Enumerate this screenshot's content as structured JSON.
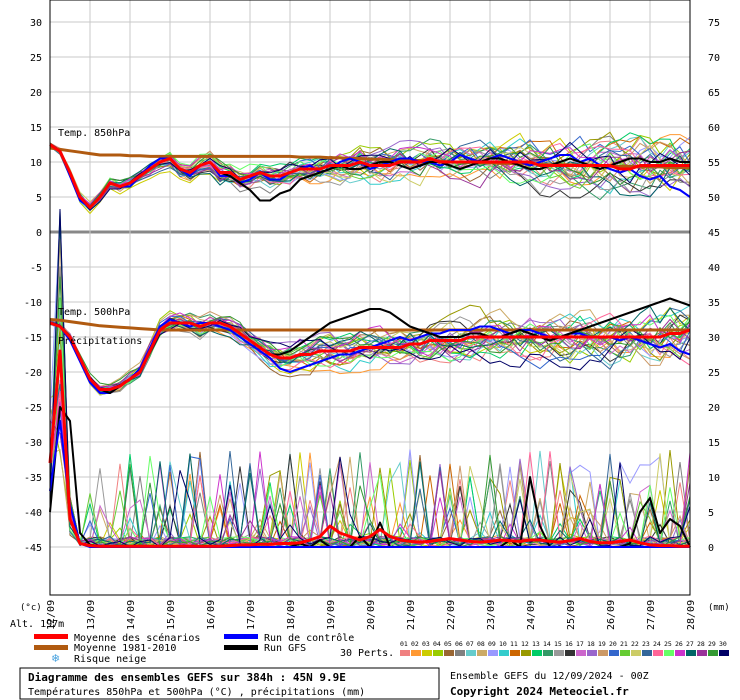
{
  "chart_data": {
    "type": "line",
    "title": "Diagramme des ensembles GEFS sur 384h : 45N 9.9E",
    "subtitle": "Températures 850hPa et 500hPa (°C) , précipitations (mm)",
    "run_info": "Ensemble GEFS du 12/09/2024 - 00Z",
    "copyright": "Copyright 2024 Meteociel.fr",
    "left_unit": "(°c)",
    "right_unit": "(mm)",
    "altitude": "Alt. 197m",
    "left_ticks": [
      30,
      25,
      20,
      15,
      10,
      5,
      0,
      -5,
      -10,
      -15,
      -20,
      -25,
      -30,
      -35,
      -40,
      -45
    ],
    "right_ticks": [
      75,
      70,
      65,
      60,
      55,
      50,
      45,
      40,
      35,
      30,
      25,
      20,
      15,
      10,
      5,
      0
    ],
    "ylim_temp": [
      -45,
      30
    ],
    "ylim_precip": [
      0,
      75
    ],
    "date_labels": [
      "12/09",
      "13/09",
      "14/09",
      "15/09",
      "16/09",
      "17/09",
      "18/09",
      "19/09",
      "20/09",
      "21/09",
      "22/09",
      "23/09",
      "24/09",
      "25/09",
      "26/09",
      "27/09",
      "28/09"
    ],
    "annotations": {
      "t850": "Temp. 850hPa",
      "t500": "Temp. 500hPa",
      "precip": "Précipitations"
    },
    "legend": {
      "mean": {
        "label": "Moyenne des scénarios",
        "color": "#ff0000"
      },
      "clim": {
        "label": "Moyenne 1981-2010",
        "color": "#b05a10"
      },
      "snow": {
        "label": "Risque neige",
        "color": "#4aa3df"
      },
      "control": {
        "label": "Run de contrôle",
        "color": "#0000ff"
      },
      "gfs": {
        "label": "Run GFS",
        "color": "#000000"
      },
      "perts_label": "30 Perts.",
      "perts_numbers": [
        "01",
        "02",
        "03",
        "04",
        "05",
        "06",
        "07",
        "08",
        "09",
        "10",
        "11",
        "12",
        "13",
        "14",
        "15",
        "16",
        "17",
        "18",
        "19",
        "20",
        "21",
        "22",
        "23",
        "24",
        "25",
        "26",
        "27",
        "28",
        "29",
        "30"
      ],
      "perts_colors": [
        "#f08080",
        "#ff9933",
        "#cccc00",
        "#99cc00",
        "#996633",
        "#808080",
        "#66cccc",
        "#ccaa66",
        "#9999ff",
        "#33cccc",
        "#cc6600",
        "#999900",
        "#00cc66",
        "#339966",
        "#999999",
        "#333333",
        "#cc66cc",
        "#9966cc",
        "#cc9966",
        "#3366cc",
        "#66cc33",
        "#cccc66",
        "#336699",
        "#ff6699",
        "#66ff66",
        "#cc33cc",
        "#006666",
        "#993399",
        "#339933",
        "#000066"
      ]
    },
    "series": [
      {
        "name": "Moyenne des scénarios",
        "var": "t850",
        "values": [
          12.5,
          11.5,
          8.5,
          5.0,
          3.5,
          5.0,
          7.0,
          6.5,
          7.0,
          8.0,
          9.0,
          10.0,
          10.5,
          9.0,
          8.5,
          9.5,
          10.0,
          8.5,
          8.5,
          7.5,
          8.0,
          8.5,
          8.0,
          8.0,
          8.5,
          9.0,
          9.0,
          9.0,
          9.5,
          9.5,
          9.5,
          10.0,
          9.5,
          9.5,
          9.5,
          10.0,
          10.0,
          10.0,
          10.5,
          10.0,
          10.0,
          10.0,
          10.0,
          10.0,
          10.0,
          10.0,
          10.0,
          10.0,
          10.0,
          9.5,
          9.5,
          9.5,
          9.5,
          9.5,
          9.5,
          9.5,
          9.5,
          9.0,
          9.0,
          9.5,
          9.5,
          9.5,
          9.5,
          9.5,
          9.5
        ]
      },
      {
        "name": "Moyenne des scénarios",
        "var": "t500",
        "values": [
          -13,
          -13.5,
          -15,
          -18,
          -21,
          -22.5,
          -22.5,
          -22,
          -21,
          -20,
          -17,
          -14,
          -13,
          -13,
          -13,
          -13.5,
          -13,
          -13,
          -13.5,
          -14.5,
          -15.5,
          -16.5,
          -17.5,
          -18,
          -18,
          -17.5,
          -17.5,
          -17,
          -17,
          -17,
          -17,
          -16.5,
          -16.5,
          -16.5,
          -16.5,
          -16.5,
          -16,
          -16,
          -15.5,
          -15.5,
          -15.5,
          -15.5,
          -15,
          -15,
          -15,
          -15,
          -15,
          -15,
          -15,
          -15,
          -15,
          -15,
          -15,
          -15,
          -15,
          -15,
          -15,
          -15,
          -15,
          -15,
          -15,
          -15,
          -14.5,
          -14.5,
          -14
        ]
      },
      {
        "name": "Moyenne 1981-2010",
        "var": "t850",
        "values": [
          12.0,
          11.8,
          11.6,
          11.4,
          11.2,
          11.0,
          11.0,
          11.0,
          10.9,
          10.9,
          10.8,
          10.8,
          10.8,
          10.8,
          10.8,
          10.8,
          10.8,
          10.8,
          10.8,
          10.8,
          10.8,
          10.8,
          10.8,
          10.8,
          10.8,
          10.7,
          10.7,
          10.7,
          10.6,
          10.6,
          10.5,
          10.5,
          10.4,
          10.4,
          10.3,
          10.3,
          10.2,
          10.2,
          10.1,
          10.1,
          10.0,
          10.0,
          10.0,
          9.9,
          9.9,
          9.8,
          9.8,
          9.8,
          9.7,
          9.7,
          9.6,
          9.6,
          9.6,
          9.5,
          9.5,
          9.5,
          9.4,
          9.4,
          9.4,
          9.3,
          9.3,
          9.3,
          9.2,
          9.2,
          9.2
        ]
      },
      {
        "name": "Moyenne 1981-2010",
        "var": "t500",
        "values": [
          -12.5,
          -12.6,
          -12.8,
          -13.0,
          -13.2,
          -13.4,
          -13.5,
          -13.6,
          -13.7,
          -13.8,
          -13.9,
          -14.0,
          -14.0,
          -14.0,
          -14.0,
          -14.0,
          -14.0,
          -14.0,
          -14.0,
          -14.0,
          -14.0,
          -14.0,
          -14.0,
          -14.0,
          -14.0,
          -14.0,
          -14.0,
          -14.0,
          -14.0,
          -14.0,
          -14.0,
          -14.0,
          -14.0,
          -14.0,
          -14.0,
          -14.0,
          -14.0,
          -14.0,
          -14.0,
          -14.0,
          -14.0,
          -14.0,
          -14.0,
          -14.0,
          -14.0,
          -14.0,
          -14.0,
          -14.0,
          -14.0,
          -14.0,
          -14.0,
          -14.0,
          -14.0,
          -14.0,
          -14.0,
          -14.0,
          -14.0,
          -14.0,
          -14.0,
          -14.0,
          -14.0,
          -14.0,
          -14.0,
          -14.0,
          -14.0
        ]
      },
      {
        "name": "Run de contrôle",
        "var": "t850",
        "values": [
          12.5,
          11.5,
          8.0,
          4.5,
          3.5,
          5.0,
          7.0,
          6.5,
          6.5,
          8.0,
          9.5,
          10.5,
          10.5,
          9.0,
          8.0,
          9.5,
          10.0,
          8.0,
          8.0,
          7.0,
          7.5,
          8.5,
          7.5,
          7.5,
          8.5,
          9.0,
          9.5,
          8.5,
          9.0,
          10.0,
          10.5,
          10.0,
          9.0,
          9.5,
          10.0,
          10.5,
          10.5,
          10.0,
          10.0,
          9.5,
          10.0,
          11.0,
          10.5,
          10.0,
          10.5,
          11.0,
          10.5,
          10.0,
          9.5,
          10.0,
          10.5,
          11.0,
          11.0,
          10.0,
          10.5,
          9.5,
          9.0,
          8.5,
          9.0,
          8.0,
          7.5,
          8.0,
          6.5,
          6.0,
          5.0
        ]
      },
      {
        "name": "Run de contrôle",
        "var": "t500",
        "values": [
          -13,
          -13.5,
          -15.5,
          -18.5,
          -21.5,
          -23,
          -23,
          -22,
          -21,
          -19.5,
          -16.5,
          -13.5,
          -12.5,
          -13,
          -13.5,
          -13,
          -13,
          -13.5,
          -14,
          -15,
          -16,
          -17,
          -18,
          -19.5,
          -20,
          -19.5,
          -19,
          -18.5,
          -18,
          -17.5,
          -17.5,
          -17,
          -16.5,
          -16,
          -15.5,
          -15,
          -15.5,
          -15,
          -14.5,
          -14.5,
          -14,
          -14,
          -14,
          -13.5,
          -13.5,
          -14,
          -14.5,
          -14,
          -14,
          -14.5,
          -15,
          -15,
          -14.5,
          -14.5,
          -15,
          -15,
          -15,
          -15.5,
          -15,
          -15.5,
          -16,
          -16.5,
          -16,
          -17,
          -17.5
        ]
      },
      {
        "name": "Run GFS",
        "var": "t850",
        "values": [
          12.5,
          11.5,
          8.5,
          5.0,
          3.5,
          5.0,
          7.0,
          6.5,
          7.0,
          8.0,
          9.0,
          10.0,
          10.5,
          9.0,
          8.5,
          9.5,
          10.0,
          8.5,
          8.0,
          7.0,
          6.0,
          4.5,
          4.5,
          5.5,
          6.0,
          7.5,
          8.0,
          8.5,
          9.0,
          9.5,
          9.0,
          9.0,
          9.5,
          10.0,
          10.0,
          9.5,
          9.0,
          9.5,
          10.0,
          10.0,
          9.5,
          9.0,
          9.5,
          10.0,
          10.5,
          10.5,
          10.0,
          9.5,
          9.0,
          9.0,
          9.5,
          10.0,
          10.5,
          10.0,
          9.5,
          9.0,
          9.5,
          10.0,
          10.5,
          10.5,
          10.0,
          10.0,
          10.5,
          10.0,
          10.0
        ]
      },
      {
        "name": "Run GFS",
        "var": "t500",
        "values": [
          -13,
          -13.5,
          -15,
          -18,
          -21,
          -22.5,
          -23,
          -22,
          -21,
          -20,
          -17,
          -14,
          -13,
          -13,
          -13,
          -13.5,
          -13,
          -13,
          -13.5,
          -14.5,
          -15.5,
          -16.5,
          -17.5,
          -17.5,
          -17,
          -16,
          -15,
          -14,
          -13,
          -12.5,
          -12,
          -11.5,
          -11,
          -11,
          -11.5,
          -12.5,
          -13.5,
          -14,
          -14.5,
          -15,
          -15,
          -15,
          -14.5,
          -14.5,
          -15,
          -15,
          -14.5,
          -14,
          -14.5,
          -15,
          -15.5,
          -15,
          -14.5,
          -14,
          -13.5,
          -13,
          -12.5,
          -12,
          -11.5,
          -11,
          -10.5,
          -10,
          -9.5,
          -10,
          -10.5
        ]
      },
      {
        "name": "Moyenne des scénarios",
        "var": "precip",
        "values": [
          12,
          28,
          4,
          0.5,
          0.2,
          0.1,
          0.1,
          0.1,
          0.1,
          0.1,
          0.1,
          0.1,
          0.1,
          0.1,
          0.1,
          0.1,
          0.1,
          0.1,
          0.2,
          0.3,
          0.3,
          0.4,
          0.4,
          0.5,
          0.5,
          0.6,
          1.0,
          1.5,
          3.0,
          2.0,
          1.5,
          1.0,
          1.5,
          2.5,
          1.5,
          1.0,
          0.8,
          0.7,
          0.8,
          1.0,
          1.2,
          1.0,
          0.8,
          0.7,
          0.8,
          1.0,
          0.9,
          0.8,
          1.0,
          1.0,
          0.8,
          0.7,
          0.9,
          1.2,
          0.8,
          0.6,
          0.6,
          0.8,
          1.0,
          0.6,
          0.3,
          0.2,
          0.2,
          0.1,
          0.1
        ]
      },
      {
        "name": "Run GFS",
        "var": "precip",
        "values": [
          5,
          20,
          18,
          2,
          0.3,
          0.1,
          0,
          0,
          0,
          0,
          0,
          0,
          0,
          0,
          0,
          0,
          0,
          0,
          0,
          0,
          0,
          0,
          0,
          0,
          0,
          0.5,
          0,
          1.0,
          0,
          0,
          0,
          1.5,
          0,
          3.5,
          0,
          0,
          0,
          0,
          0,
          0,
          0,
          0,
          0,
          0,
          0,
          0,
          1.0,
          0,
          10.0,
          3.0,
          0,
          0,
          0,
          0,
          0,
          0,
          0,
          0,
          0.5,
          5.0,
          7.0,
          2.0,
          4.0,
          3.0,
          0
        ]
      },
      {
        "name": "Run de contrôle",
        "var": "precip",
        "values": [
          8,
          18,
          6,
          0.5,
          0,
          0,
          0,
          0,
          0,
          0,
          0,
          0,
          0,
          0,
          0,
          0,
          0,
          0,
          0,
          0,
          0,
          0,
          0,
          0,
          0,
          0,
          0,
          0,
          0,
          0,
          0,
          0,
          0,
          0,
          0,
          0,
          0,
          0,
          0,
          0,
          0,
          0,
          0,
          0,
          0,
          0,
          0,
          0,
          0,
          0,
          0,
          0,
          0,
          0,
          0,
          0,
          0,
          0,
          0,
          0,
          0,
          0,
          0,
          0,
          0
        ]
      }
    ]
  }
}
